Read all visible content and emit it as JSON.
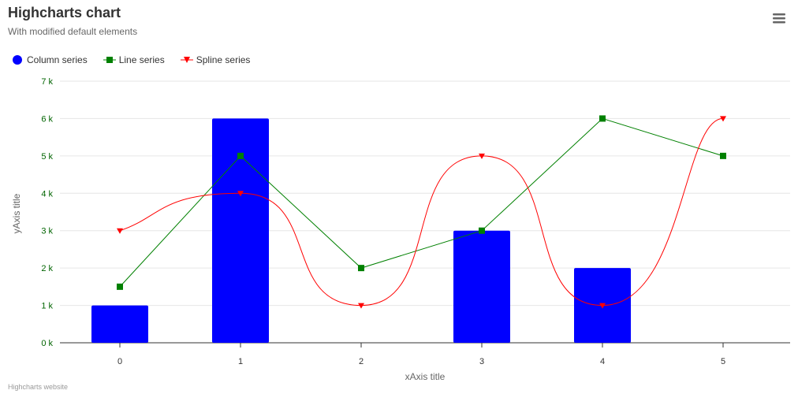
{
  "header": {
    "title": "Highcharts chart",
    "subtitle": "With modified default elements"
  },
  "menu": {
    "icon": "hamburger-menu-icon"
  },
  "credits": {
    "text": "Highcharts website"
  },
  "chart_data": {
    "type": "bar",
    "title": "Highcharts chart",
    "subtitle": "With modified default elements",
    "xlabel": "xAxis title",
    "ylabel": "yAxis title",
    "categories": [
      "0",
      "1",
      "2",
      "3",
      "4",
      "5"
    ],
    "y_ticks": [
      "0 k",
      "1 k",
      "2 k",
      "3 k",
      "4 k",
      "5 k",
      "6 k",
      "7 k"
    ],
    "ylim": [
      0,
      7000
    ],
    "grid": true,
    "legend_position": "top-left",
    "series": [
      {
        "name": "Column series",
        "type": "column",
        "color": "#0000ff",
        "marker": "circle",
        "values": [
          1000,
          6000,
          null,
          3000,
          2000,
          null
        ]
      },
      {
        "name": "Line series",
        "type": "line",
        "color": "#008000",
        "marker": "square",
        "values": [
          1500,
          5000,
          2000,
          3000,
          6000,
          5000
        ]
      },
      {
        "name": "Spline series",
        "type": "spline",
        "color": "#ff0000",
        "marker": "triangle-down",
        "values": [
          3000,
          4000,
          1000,
          5000,
          1000,
          6000
        ]
      }
    ]
  }
}
